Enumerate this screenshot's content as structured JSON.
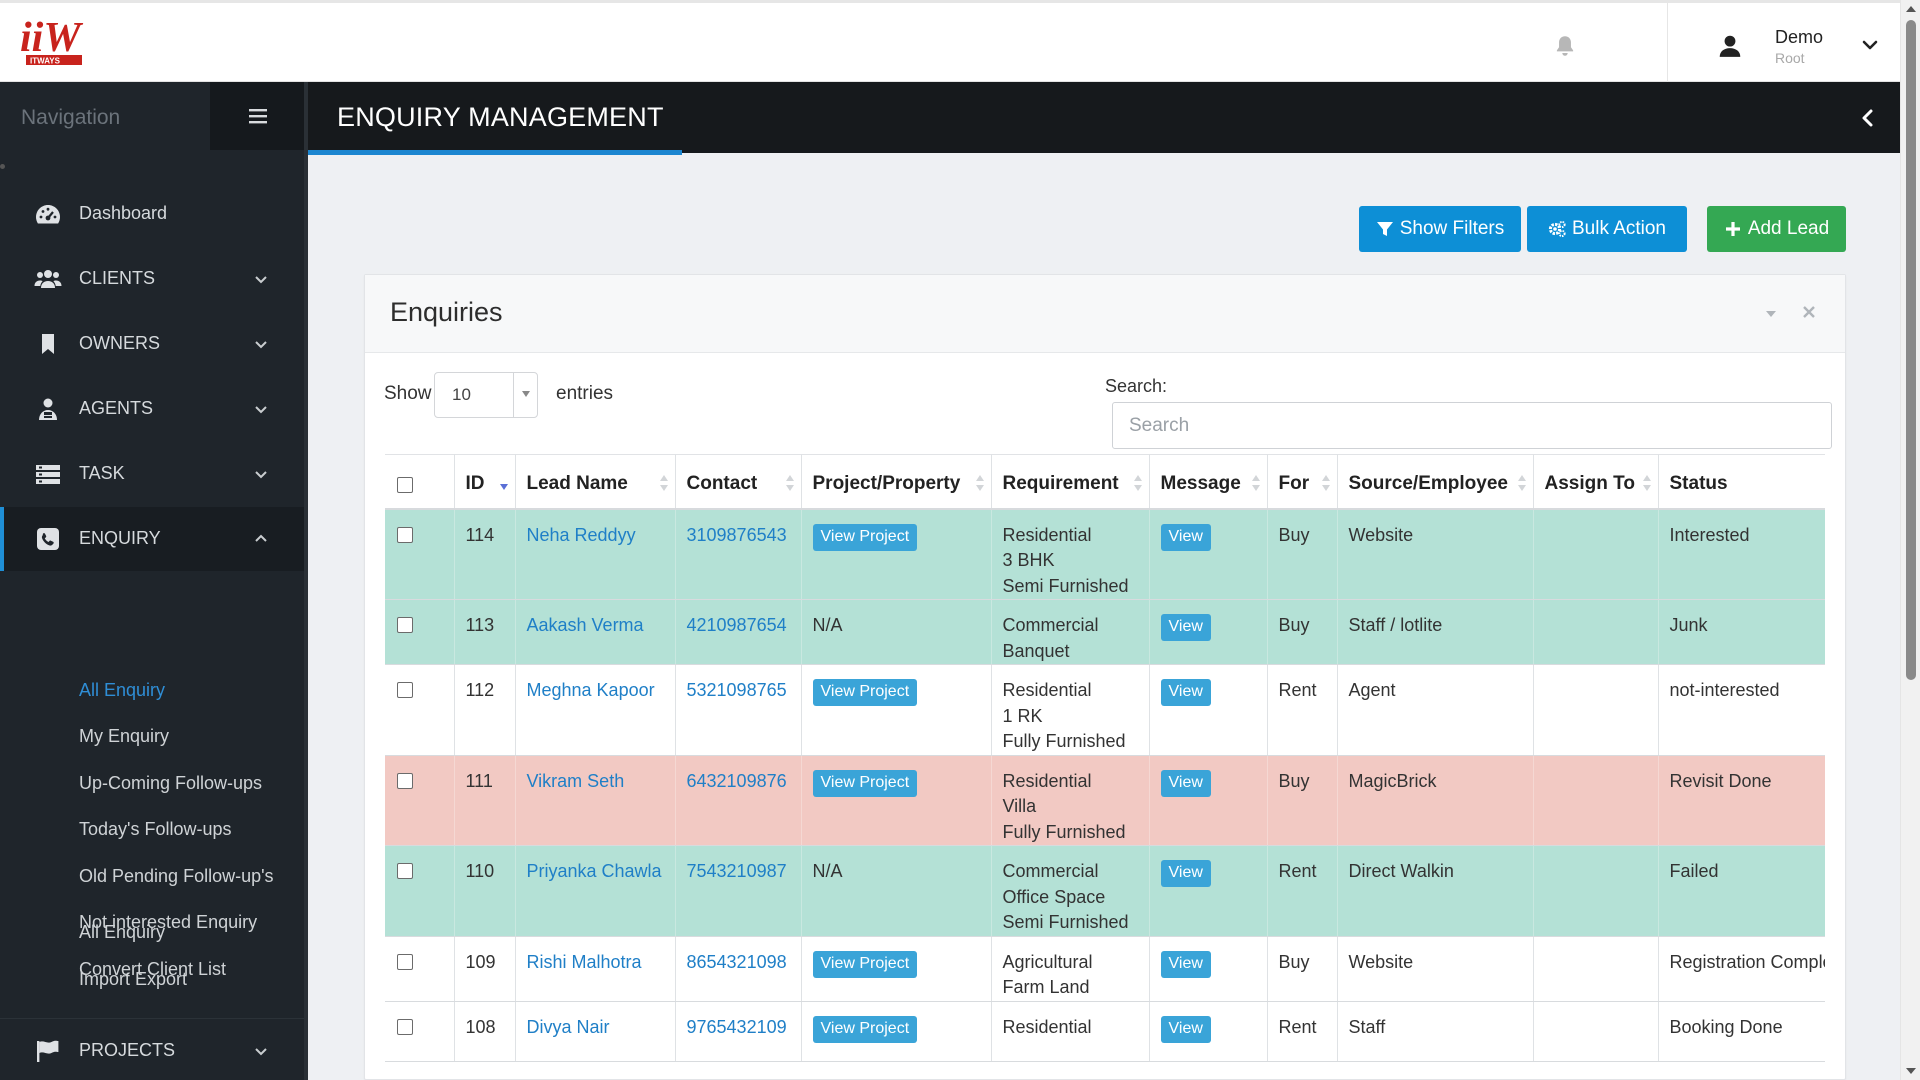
{
  "header": {
    "logo_text": "iiW",
    "logo_subtext": "ITWAYS",
    "user_name": "Demo",
    "user_role": "Root"
  },
  "sidebar": {
    "title": "Navigation",
    "items": [
      {
        "label": "Dashboard",
        "icon": "dashboard-icon"
      },
      {
        "label": "CLIENTS",
        "icon": "users-icon"
      },
      {
        "label": "OWNERS",
        "icon": "bookmark-icon"
      },
      {
        "label": "AGENTS",
        "icon": "agent-icon"
      },
      {
        "label": "TASK",
        "icon": "task-icon"
      },
      {
        "label": "ENQUIRY",
        "icon": "phone-icon"
      },
      {
        "label": "PROJECTS",
        "icon": "flag-icon"
      }
    ],
    "enquiry_sub": [
      "All Enquiry",
      "My Enquiry",
      "Up-Coming Follow-ups",
      "Today's Follow-ups",
      "Old Pending Follow-up's",
      "Not interested Enquiry",
      "Convert Client List",
      "All Enquiry",
      "Import Export"
    ]
  },
  "page": {
    "title": "ENQUIRY MANAGEMENT"
  },
  "actions": {
    "show_filters": "Show Filters",
    "bulk_action": "Bulk Action",
    "add_lead": "Add Lead"
  },
  "panel": {
    "title": "Enquiries",
    "show_label": "Show",
    "entries_value": "10",
    "entries_label": "entries",
    "search_label": "Search:",
    "search_placeholder": "Search"
  },
  "table": {
    "columns": [
      "ID",
      "Lead Name",
      "Contact",
      "Project/Property",
      "Requirement",
      "Message",
      "For",
      "Source/Employee",
      "Assign To",
      "Status"
    ],
    "rows": [
      {
        "id": "114",
        "name": "Neha Reddyy",
        "contact": "3109876543",
        "project": "View Project",
        "req1": "Residential",
        "req2": "3 BHK",
        "req3": "Semi Furnished",
        "message": "View",
        "for": "Buy",
        "source": "Website",
        "assign": "",
        "status": "Interested",
        "color": "green"
      },
      {
        "id": "113",
        "name": "Aakash Verma",
        "contact": "4210987654",
        "project": "N/A",
        "req1": "Commercial",
        "req2": "Banquet",
        "req3": "",
        "message": "View",
        "for": "Buy",
        "source": "Staff / lotlite",
        "assign": "",
        "status": "Junk",
        "color": "green"
      },
      {
        "id": "112",
        "name": "Meghna Kapoor",
        "contact": "5321098765",
        "project": "View Project",
        "req1": "Residential",
        "req2": "1 RK",
        "req3": "Fully Furnished",
        "message": "View",
        "for": "Rent",
        "source": "Agent",
        "assign": "",
        "status": "not-interested",
        "color": "white"
      },
      {
        "id": "111",
        "name": "Vikram Seth",
        "contact": "6432109876",
        "project": "View Project",
        "req1": "Residential",
        "req2": "Villa",
        "req3": "Fully Furnished",
        "message": "View",
        "for": "Buy",
        "source": "MagicBrick",
        "assign": "",
        "status": "Revisit Done",
        "color": "pink"
      },
      {
        "id": "110",
        "name": "Priyanka Chawla",
        "contact": "7543210987",
        "project": "N/A",
        "req1": "Commercial",
        "req2": "Office Space",
        "req3": "Semi Furnished",
        "message": "View",
        "for": "Rent",
        "source": "Direct Walkin",
        "assign": "",
        "status": "Failed",
        "color": "green"
      },
      {
        "id": "109",
        "name": "Rishi Malhotra",
        "contact": "8654321098",
        "project": "View Project",
        "req1": "Agricultural",
        "req2": "Farm Land",
        "req3": "",
        "message": "View",
        "for": "Buy",
        "source": "Website",
        "assign": "",
        "status": "Registration Comple",
        "color": "white"
      },
      {
        "id": "108",
        "name": "Divya Nair",
        "contact": "9765432109",
        "project": "View Project",
        "req1": "Residential",
        "req2": "",
        "req3": "",
        "message": "View",
        "for": "Rent",
        "source": "Staff",
        "assign": "",
        "status": "Booking Done",
        "color": "white"
      }
    ]
  },
  "colors": {
    "sidebar_bg": "#1f252b",
    "titlebar_bg": "#16191c",
    "accent_blue": "#0d8fd6",
    "accent_green": "#34a853",
    "row_green": "#b4e1d6",
    "row_pink": "#f2c9c3",
    "link": "#1f7fc7"
  }
}
